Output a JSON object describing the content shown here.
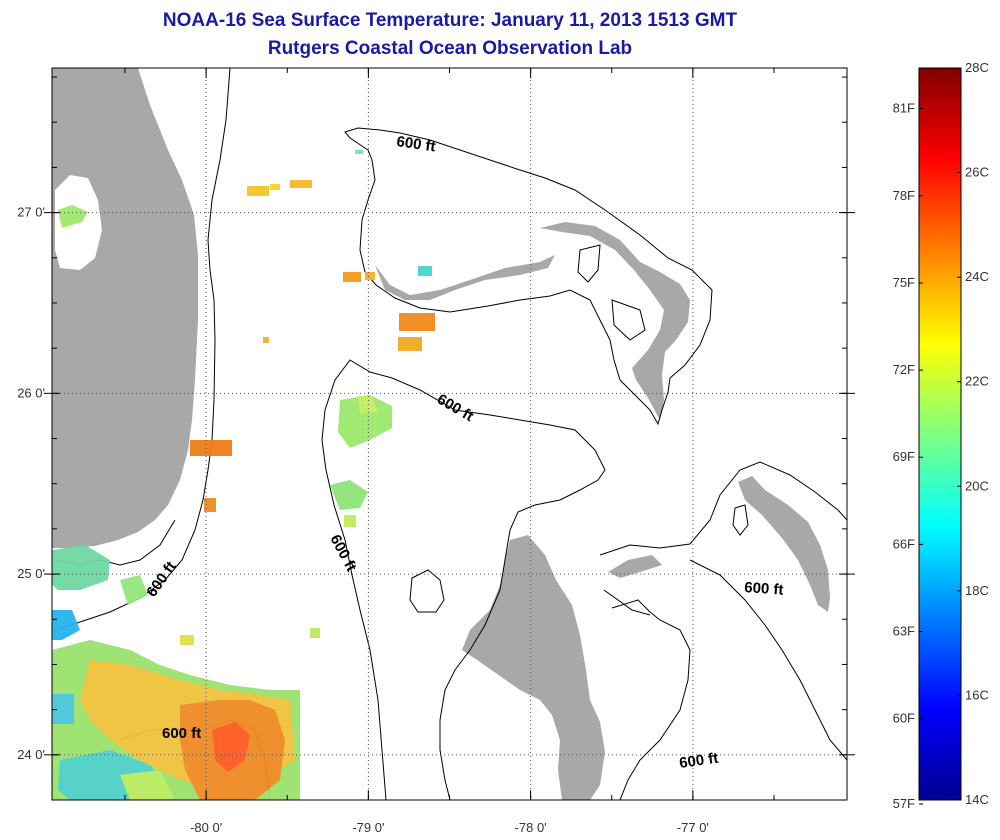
{
  "header": {
    "title": "NOAA-16 Sea Surface Temperature:  January 11, 2013 1513 GMT",
    "subtitle": "Rutgers Coastal Ocean Observation Lab"
  },
  "map": {
    "x_ticks": [
      {
        "lon": -80,
        "label": "-80 0'"
      },
      {
        "lon": -79,
        "label": "-79 0'"
      },
      {
        "lon": -78,
        "label": "-78 0'"
      },
      {
        "lon": -77,
        "label": "-77 0'"
      }
    ],
    "y_ticks": [
      {
        "lat": 27,
        "label": "27 0'"
      },
      {
        "lat": 26,
        "label": "26 0'"
      },
      {
        "lat": 25,
        "label": "25 0'"
      },
      {
        "lat": 24,
        "label": "24 0'"
      }
    ],
    "lon_range": [
      -80.95,
      -76.05
    ],
    "lat_range": [
      23.75,
      27.8
    ],
    "contour_label": "600 ft",
    "colors": {
      "land": "#a8a8a8",
      "no_data": "#ffffff",
      "contour": "#000000"
    }
  },
  "colorbar": {
    "min_c": 14,
    "max_c": 28,
    "celsius_labels": [
      "28C",
      "26C",
      "24C",
      "22C",
      "20C",
      "18C",
      "16C",
      "14C"
    ],
    "fahrenheit_labels": [
      "81F",
      "78F",
      "75F",
      "72F",
      "69F",
      "66F",
      "63F",
      "60F",
      "57F"
    ]
  }
}
